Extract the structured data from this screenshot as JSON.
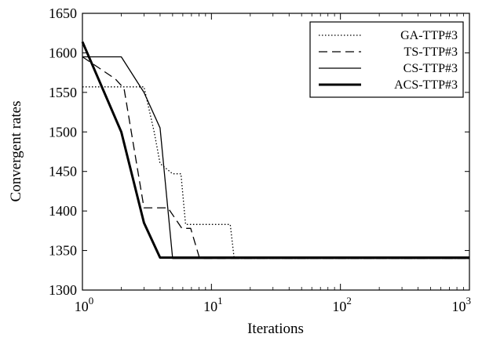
{
  "chart_data": {
    "type": "line",
    "xscale": "log",
    "xlabel": "Iterations",
    "ylabel": "Convergent rates",
    "xlim": [
      1,
      1000
    ],
    "ylim": [
      1300,
      1650
    ],
    "x_ticks": [
      {
        "value": 1,
        "base": "10",
        "exp": "0"
      },
      {
        "value": 10,
        "base": "10",
        "exp": "1"
      },
      {
        "value": 100,
        "base": "10",
        "exp": "2"
      },
      {
        "value": 1000,
        "base": "10",
        "exp": "3"
      }
    ],
    "y_ticks": [
      1300,
      1350,
      1400,
      1450,
      1500,
      1550,
      1600,
      1650
    ],
    "grid": false,
    "legend_position": "top-right",
    "series": [
      {
        "name": "GA-TTP#3",
        "style": "dotted",
        "points": [
          [
            1,
            1557
          ],
          [
            3,
            1557
          ],
          [
            3.6,
            1500
          ],
          [
            4,
            1460
          ],
          [
            5,
            1447
          ],
          [
            5.8,
            1447
          ],
          [
            6.3,
            1383
          ],
          [
            14,
            1383
          ],
          [
            15,
            1340
          ],
          [
            1000,
            1340
          ]
        ]
      },
      {
        "name": "TS-TTP#3",
        "style": "dashed",
        "points": [
          [
            1,
            1595
          ],
          [
            1.8,
            1567
          ],
          [
            2.1,
            1555
          ],
          [
            3,
            1404
          ],
          [
            4.6,
            1404
          ],
          [
            5.9,
            1378
          ],
          [
            6.9,
            1378
          ],
          [
            8.1,
            1340
          ],
          [
            1000,
            1340
          ]
        ]
      },
      {
        "name": "CS-TTP#3",
        "style": "solid",
        "points": [
          [
            1,
            1595
          ],
          [
            2,
            1595
          ],
          [
            3,
            1550
          ],
          [
            4,
            1505
          ],
          [
            5,
            1340
          ],
          [
            1000,
            1340
          ]
        ]
      },
      {
        "name": "ACS-TTP#3",
        "style": "bold",
        "points": [
          [
            1,
            1614
          ],
          [
            2,
            1500
          ],
          [
            3,
            1385
          ],
          [
            4,
            1341
          ],
          [
            1000,
            1341
          ]
        ]
      }
    ]
  }
}
